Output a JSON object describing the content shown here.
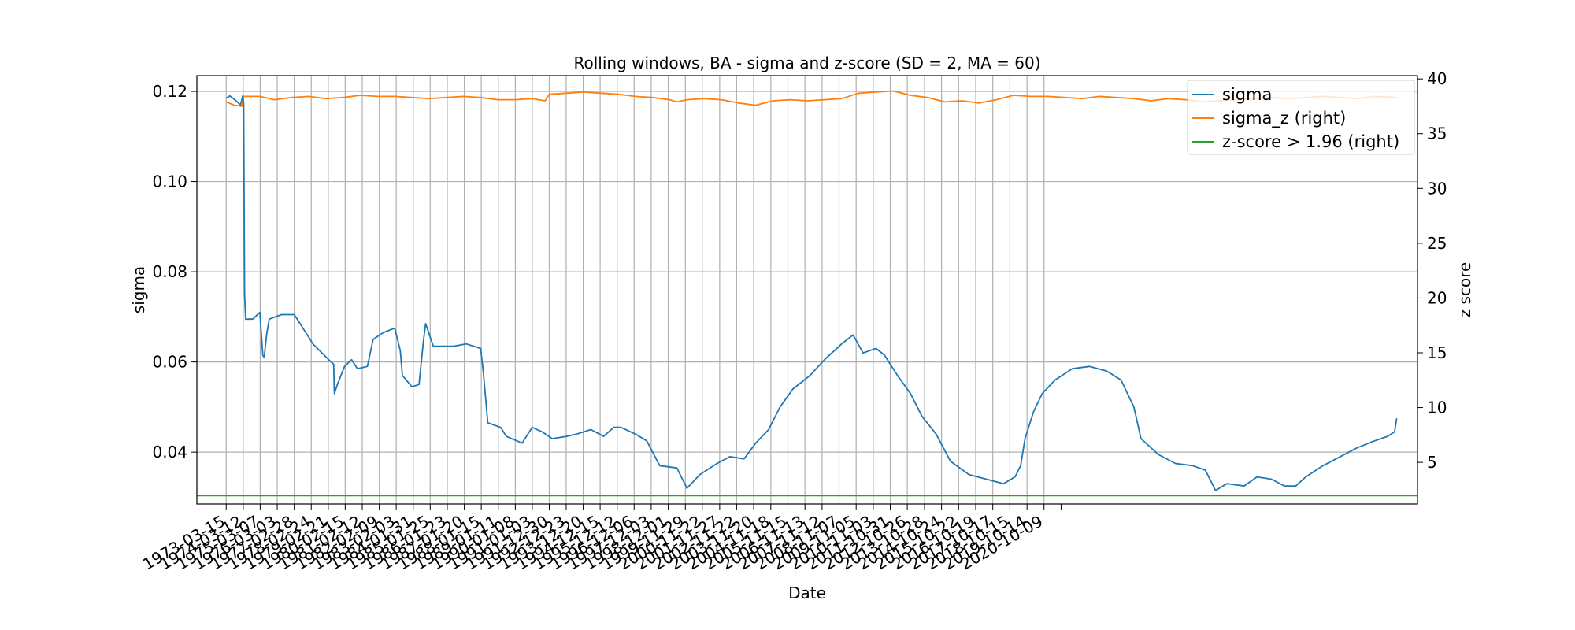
{
  "chart_data": {
    "type": "line",
    "title": "Rolling windows, BA - sigma and z-score (SD = 2, MA = 60)",
    "xlabel": "Date",
    "ylabel_left": "sigma",
    "ylabel_right": "z score",
    "ylim_left": [
      0.0285,
      0.1235
    ],
    "ylim_right": [
      1.2,
      40.3
    ],
    "yticks_left": [
      "0.04",
      "0.06",
      "0.08",
      "0.10",
      "0.12"
    ],
    "yticks_right": [
      "5",
      "10",
      "15",
      "20",
      "25",
      "30",
      "35",
      "40"
    ],
    "xticks": [
      "1973-03-15",
      "1974-03-12",
      "1975-03-07",
      "1976-03-03",
      "1977-02-28",
      "1978-02-24",
      "1979-02-21",
      "1980-02-15",
      "1981-02-12",
      "1982-02-09",
      "1983-02-03",
      "1984-01-31",
      "1985-01-25",
      "1986-01-23",
      "1987-01-20",
      "1988-01-15",
      "1989-01-11",
      "1990-01-08",
      "1991-01-03",
      "1991-12-30",
      "1992-12-23",
      "1993-12-20",
      "1994-12-15",
      "1995-12-12",
      "1996-12-06",
      "1997-12-03",
      "1998-12-01",
      "1999-11-29",
      "2000-11-22",
      "2001-11-27",
      "2002-11-22",
      "2003-11-20",
      "2004-11-18",
      "2005-11-15",
      "2006-11-13",
      "2007-11-12",
      "2008-11-07",
      "2009-11-05",
      "2010-11-03",
      "2011-10-31",
      "2012-10-26",
      "2013-10-28",
      "2014-10-24",
      "2015-10-22",
      "2016-10-19",
      "2017-10-17",
      "2018-10-15",
      "2019-10-14",
      "2020-10-09"
    ],
    "grid": true,
    "legend_position": "top-right",
    "series": [
      {
        "name": "sigma",
        "axis": "left",
        "color": "#1f77b4",
        "points": [
          [
            "1973-03-15",
            0.1185
          ],
          [
            "1973-06-01",
            0.119
          ],
          [
            "1973-10-01",
            0.118
          ],
          [
            "1974-01-15",
            0.117
          ],
          [
            "1974-03-01",
            0.119
          ],
          [
            "1974-03-20",
            0.1175
          ],
          [
            "1974-04-10",
            0.075
          ],
          [
            "1974-05-01",
            0.0695
          ],
          [
            "1974-10-01",
            0.0695
          ],
          [
            "1975-03-01",
            0.071
          ],
          [
            "1975-05-01",
            0.0615
          ],
          [
            "1975-06-01",
            0.061
          ],
          [
            "1975-07-20",
            0.066
          ],
          [
            "1975-09-15",
            0.0695
          ],
          [
            "1976-06-01",
            0.0705
          ],
          [
            "1977-03-01",
            0.0705
          ],
          [
            "1977-08-01",
            0.068
          ],
          [
            "1978-04-01",
            0.064
          ],
          [
            "1979-03-01",
            0.0605
          ],
          [
            "1979-06-15",
            0.0595
          ],
          [
            "1979-07-01",
            0.053
          ],
          [
            "1979-09-01",
            0.055
          ],
          [
            "1980-02-01",
            0.059
          ],
          [
            "1980-07-01",
            0.0605
          ],
          [
            "1980-11-01",
            0.0585
          ],
          [
            "1981-06-01",
            0.059
          ],
          [
            "1981-10-01",
            0.065
          ],
          [
            "1982-05-01",
            0.0665
          ],
          [
            "1983-01-01",
            0.0675
          ],
          [
            "1983-05-01",
            0.0625
          ],
          [
            "1983-06-15",
            0.057
          ],
          [
            "1984-01-01",
            0.0545
          ],
          [
            "1984-06-01",
            0.055
          ],
          [
            "1984-09-01",
            0.0645
          ],
          [
            "1984-10-20",
            0.0685
          ],
          [
            "1985-04-01",
            0.0635
          ],
          [
            "1986-06-01",
            0.0635
          ],
          [
            "1987-03-01",
            0.064
          ],
          [
            "1988-01-01",
            0.063
          ],
          [
            "1988-03-01",
            0.0575
          ],
          [
            "1988-06-01",
            0.0465
          ],
          [
            "1989-03-01",
            0.0455
          ],
          [
            "1989-07-01",
            0.0435
          ],
          [
            "1990-06-01",
            0.042
          ],
          [
            "1991-01-01",
            0.0455
          ],
          [
            "1991-08-01",
            0.0445
          ],
          [
            "1992-03-01",
            0.043
          ],
          [
            "1993-01-01",
            0.0435
          ],
          [
            "1993-08-01",
            0.044
          ],
          [
            "1994-01-01",
            0.0445
          ],
          [
            "1994-06-01",
            0.045
          ],
          [
            "1995-03-01",
            0.0435
          ],
          [
            "1995-10-01",
            0.0455
          ],
          [
            "1996-03-01",
            0.0455
          ],
          [
            "1997-01-01",
            0.044
          ],
          [
            "1997-09-01",
            0.0425
          ],
          [
            "1998-06-01",
            0.037
          ],
          [
            "1999-06-01",
            0.0365
          ],
          [
            "2000-01-01",
            0.032
          ],
          [
            "2000-10-01",
            0.035
          ],
          [
            "2001-10-01",
            0.0375
          ],
          [
            "2002-07-01",
            0.039
          ],
          [
            "2003-05-01",
            0.0385
          ],
          [
            "2004-01-01",
            0.042
          ],
          [
            "2004-10-01",
            0.045
          ],
          [
            "2005-06-01",
            0.05
          ],
          [
            "2006-03-01",
            0.054
          ],
          [
            "2007-03-01",
            0.057
          ],
          [
            "2008-01-01",
            0.0605
          ],
          [
            "2009-01-01",
            0.064
          ],
          [
            "2009-09-01",
            0.066
          ],
          [
            "2010-04-01",
            0.062
          ],
          [
            "2011-01-01",
            0.063
          ],
          [
            "2011-07-01",
            0.0615
          ],
          [
            "2012-04-01",
            0.057
          ],
          [
            "2013-01-01",
            0.053
          ],
          [
            "2013-09-01",
            0.048
          ],
          [
            "2014-07-01",
            0.044
          ],
          [
            "2015-05-01",
            0.038
          ],
          [
            "2016-06-01",
            0.035
          ],
          [
            "2017-06-01",
            0.034
          ],
          [
            "2018-06-01",
            0.033
          ],
          [
            "2019-02-01",
            0.0345
          ],
          [
            "2019-06-01",
            0.037
          ],
          [
            "2019-09-01",
            0.043
          ],
          [
            "2020-03-01",
            0.049
          ],
          [
            "2020-09-01",
            0.053
          ],
          [
            "2021-06-01",
            0.056
          ],
          [
            "2022-06-01",
            0.0585
          ],
          [
            "2023-06-01",
            0.059
          ],
          [
            "2024-06-01",
            0.058
          ],
          [
            "2025-04-01",
            0.056
          ],
          [
            "2026-01-01",
            0.05
          ],
          [
            "2026-06-01",
            0.043
          ],
          [
            "2027-06-01",
            0.0395
          ],
          [
            "2028-06-01",
            0.0375
          ],
          [
            "2029-06-01",
            0.037
          ],
          [
            "2030-03-01",
            0.036
          ],
          [
            "2030-10-01",
            0.0315
          ],
          [
            "2031-06-01",
            0.033
          ],
          [
            "2032-06-01",
            0.0325
          ],
          [
            "2033-03-01",
            0.0345
          ],
          [
            "2034-01-01",
            0.034
          ],
          [
            "2034-10-01",
            0.0325
          ],
          [
            "2035-06-01",
            0.0325
          ],
          [
            "2036-01-01",
            0.0345
          ],
          [
            "2037-01-01",
            0.037
          ],
          [
            "2038-01-01",
            0.039
          ],
          [
            "2039-01-01",
            0.041
          ],
          [
            "2040-01-01",
            0.0425
          ],
          [
            "2040-10-01",
            0.0435
          ],
          [
            "2041-03-01",
            0.0445
          ],
          [
            "2041-04-15",
            0.0475
          ]
        ]
      },
      {
        "name": "sigma_z (right)",
        "axis": "right",
        "color": "#ff7f0e",
        "points": [
          [
            "1973-03-15",
            37.9
          ],
          [
            "1973-09-01",
            37.6
          ],
          [
            "1974-02-15",
            37.5
          ],
          [
            "1974-03-20",
            38.4
          ],
          [
            "1975-03-01",
            38.4
          ],
          [
            "1976-01-01",
            38.1
          ],
          [
            "1977-01-01",
            38.3
          ],
          [
            "1978-01-01",
            38.4
          ],
          [
            "1979-01-01",
            38.2
          ],
          [
            "1980-01-01",
            38.3
          ],
          [
            "1981-01-01",
            38.5
          ],
          [
            "1982-01-01",
            38.4
          ],
          [
            "1983-01-01",
            38.4
          ],
          [
            "1984-01-01",
            38.3
          ],
          [
            "1985-01-01",
            38.2
          ],
          [
            "1986-01-01",
            38.3
          ],
          [
            "1987-01-01",
            38.4
          ],
          [
            "1988-01-01",
            38.3
          ],
          [
            "1989-01-01",
            38.1
          ],
          [
            "1990-01-01",
            38.1
          ],
          [
            "1991-01-01",
            38.2
          ],
          [
            "1991-10-01",
            38.0
          ],
          [
            "1992-01-01",
            38.6
          ],
          [
            "1993-01-01",
            38.7
          ],
          [
            "1994-01-01",
            38.8
          ],
          [
            "1995-01-01",
            38.7
          ],
          [
            "1996-01-01",
            38.6
          ],
          [
            "1997-01-01",
            38.4
          ],
          [
            "1998-01-01",
            38.3
          ],
          [
            "1999-01-01",
            38.1
          ],
          [
            "1999-06-01",
            37.9
          ],
          [
            "2000-01-01",
            38.1
          ],
          [
            "2001-01-01",
            38.2
          ],
          [
            "2002-01-01",
            38.1
          ],
          [
            "2003-01-01",
            37.8
          ],
          [
            "2004-01-01",
            37.6
          ],
          [
            "2005-01-01",
            38.0
          ],
          [
            "2006-01-01",
            38.1
          ],
          [
            "2007-01-01",
            38.0
          ],
          [
            "2008-01-01",
            38.1
          ],
          [
            "2009-01-01",
            38.2
          ],
          [
            "2010-01-01",
            38.7
          ],
          [
            "2011-01-01",
            38.8
          ],
          [
            "2012-01-01",
            38.9
          ],
          [
            "2013-01-01",
            38.5
          ],
          [
            "2014-01-01",
            38.3
          ],
          [
            "2015-01-01",
            37.9
          ],
          [
            "2016-01-01",
            38.0
          ],
          [
            "2017-01-01",
            37.8
          ],
          [
            "2018-01-01",
            38.1
          ],
          [
            "2019-01-01",
            38.5
          ],
          [
            "2020-01-01",
            38.4
          ],
          [
            "2021-01-01",
            38.4
          ],
          [
            "2022-01-01",
            38.3
          ],
          [
            "2023-01-01",
            38.2
          ],
          [
            "2024-01-01",
            38.4
          ],
          [
            "2025-01-01",
            38.3
          ],
          [
            "2026-01-01",
            38.2
          ],
          [
            "2027-01-01",
            38.0
          ],
          [
            "2028-01-01",
            38.2
          ],
          [
            "2029-01-01",
            38.1
          ],
          [
            "2030-01-01",
            37.9
          ],
          [
            "2031-01-01",
            38.0
          ],
          [
            "2032-01-01",
            38.1
          ],
          [
            "2033-01-01",
            38.2
          ],
          [
            "2034-01-01",
            38.3
          ],
          [
            "2035-01-01",
            38.2
          ],
          [
            "2036-01-01",
            38.3
          ],
          [
            "2037-01-01",
            38.4
          ],
          [
            "2038-01-01",
            38.3
          ],
          [
            "2039-01-01",
            38.2
          ],
          [
            "2040-01-01",
            38.4
          ],
          [
            "2041-04-15",
            38.3
          ]
        ]
      },
      {
        "name": "z-score > 1.96 (right)",
        "axis": "right",
        "color": "#2ca02c",
        "points": [
          [
            "1971-07-01",
            1.96
          ],
          [
            "2042-07-01",
            1.96
          ]
        ]
      }
    ]
  }
}
